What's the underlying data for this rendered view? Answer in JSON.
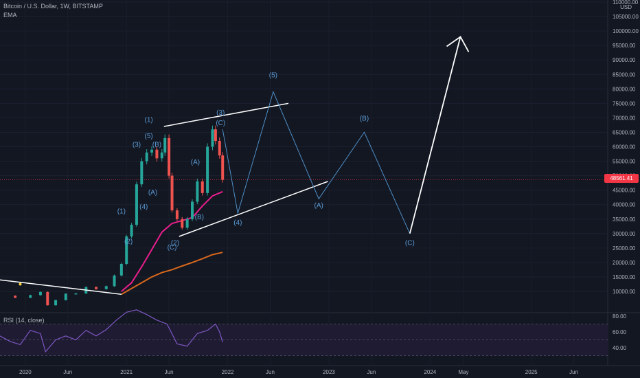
{
  "symbol": {
    "title": "Bitcoin / U.S. Dollar, 1W, BITSTAMP",
    "indicator": "EMA",
    "currency": "USD",
    "last_price": "48561.41"
  },
  "rsi": {
    "title": "RSI (14, close)",
    "axis_labels": [
      "80.00",
      "60.00",
      "40.00"
    ]
  },
  "x_axis_labels": [
    "2020",
    "Jun",
    "2021",
    "Jun",
    "2022",
    "Jun",
    "2023",
    "Jun",
    "2024",
    "May",
    "2025",
    "Jun"
  ],
  "chart_data": {
    "type": "candlestick",
    "title": "Bitcoin / U.S. Dollar, 1W, BITSTAMP",
    "y_axis_labels": [
      "110000.00",
      "105000.00",
      "100000.00",
      "95000.00",
      "90000.00",
      "85000.00",
      "80000.00",
      "75000.00",
      "70000.00",
      "65000.00",
      "60000.00",
      "55000.00",
      "50000.00",
      "45000.00",
      "40000.00",
      "35000.00",
      "30000.00",
      "25000.00",
      "20000.00",
      "15000.00",
      "10000.00"
    ],
    "y_range": [
      10000,
      110000
    ],
    "price_series": [
      [
        2019.75,
        8500
      ],
      [
        2019.9,
        7800
      ],
      [
        2020.05,
        8700
      ],
      [
        2020.15,
        9800
      ],
      [
        2020.22,
        5200
      ],
      [
        2020.3,
        7000
      ],
      [
        2020.4,
        9200
      ],
      [
        2020.5,
        9300
      ],
      [
        2020.6,
        11500
      ],
      [
        2020.7,
        10800
      ],
      [
        2020.8,
        11800
      ],
      [
        2020.88,
        15500
      ],
      [
        2020.95,
        19500
      ],
      [
        2021.0,
        29000
      ],
      [
        2021.05,
        33000
      ],
      [
        2021.1,
        47000
      ],
      [
        2021.15,
        55000
      ],
      [
        2021.2,
        58000
      ],
      [
        2021.25,
        59000
      ],
      [
        2021.3,
        56000
      ],
      [
        2021.35,
        58000
      ],
      [
        2021.38,
        63000
      ],
      [
        2021.42,
        50000
      ],
      [
        2021.45,
        38000
      ],
      [
        2021.5,
        35000
      ],
      [
        2021.55,
        32000
      ],
      [
        2021.6,
        35000
      ],
      [
        2021.65,
        41000
      ],
      [
        2021.7,
        48000
      ],
      [
        2021.75,
        44000
      ],
      [
        2021.8,
        60000
      ],
      [
        2021.85,
        66000
      ],
      [
        2021.88,
        62000
      ],
      [
        2021.92,
        57000
      ],
      [
        2021.95,
        48561
      ]
    ],
    "ema_short": [
      [
        2020.95,
        10000
      ],
      [
        2021.05,
        13000
      ],
      [
        2021.15,
        18500
      ],
      [
        2021.25,
        24500
      ],
      [
        2021.35,
        30500
      ],
      [
        2021.45,
        33500
      ],
      [
        2021.55,
        34500
      ],
      [
        2021.65,
        35500
      ],
      [
        2021.75,
        39500
      ],
      [
        2021.85,
        43000
      ],
      [
        2021.95,
        44500
      ]
    ],
    "ema_long": [
      [
        2020.95,
        9000
      ],
      [
        2021.05,
        11000
      ],
      [
        2021.15,
        13000
      ],
      [
        2021.25,
        15000
      ],
      [
        2021.35,
        16500
      ],
      [
        2021.45,
        17500
      ],
      [
        2021.55,
        18800
      ],
      [
        2021.65,
        20000
      ],
      [
        2021.75,
        21300
      ],
      [
        2021.85,
        22700
      ],
      [
        2021.95,
        23500
      ]
    ],
    "projection_path": [
      [
        2021.95,
        66000
      ],
      [
        2022.1,
        37000
      ],
      [
        2022.45,
        79000
      ],
      [
        2022.9,
        42000
      ],
      [
        2023.35,
        65000
      ],
      [
        2023.8,
        30000
      ]
    ],
    "upper_trendline": [
      [
        2021.37,
        67000
      ],
      [
        2022.6,
        75000
      ]
    ],
    "lower_trendline": [
      [
        2021.52,
        29000
      ],
      [
        2022.99,
        48000
      ]
    ],
    "breakout_arrow": [
      [
        2023.8,
        30000
      ],
      [
        2024.3,
        98000
      ]
    ],
    "old_downtrend_line": [
      [
        2019.75,
        14000
      ],
      [
        2020.95,
        9000
      ]
    ],
    "wave_labels": [
      {
        "text": "(1)",
        "x": 2020.95,
        "y": 37000
      },
      {
        "text": "(2)",
        "x": 2021.02,
        "y": 26500
      },
      {
        "text": "(3)",
        "x": 2021.1,
        "y": 60000
      },
      {
        "text": "(4)",
        "x": 2021.17,
        "y": 38500
      },
      {
        "text": "(5)",
        "x": 2021.22,
        "y": 63000
      },
      {
        "text": "(1)",
        "x": 2021.22,
        "y": 68500
      },
      {
        "text": "(A)",
        "x": 2021.26,
        "y": 43500
      },
      {
        "text": "(B)",
        "x": 2021.3,
        "y": 60000
      },
      {
        "text": "(C)",
        "x": 2021.45,
        "y": 24500
      },
      {
        "text": "(2)",
        "x": 2021.48,
        "y": 26000
      },
      {
        "text": "(A)",
        "x": 2021.68,
        "y": 54000
      },
      {
        "text": "(B)",
        "x": 2021.72,
        "y": 35000
      },
      {
        "text": "(3)",
        "x": 2021.93,
        "y": 71000
      },
      {
        "text": "(C)",
        "x": 2021.93,
        "y": 67500
      },
      {
        "text": "(4)",
        "x": 2022.1,
        "y": 33000
      },
      {
        "text": "(5)",
        "x": 2022.45,
        "y": 84000
      },
      {
        "text": "(A)",
        "x": 2022.9,
        "y": 39000
      },
      {
        "text": "(B)",
        "x": 2023.35,
        "y": 69000
      },
      {
        "text": "(C)",
        "x": 2023.8,
        "y": 26000
      }
    ],
    "rsi_series": [
      [
        2019.75,
        55
      ],
      [
        2019.85,
        48
      ],
      [
        2019.95,
        44
      ],
      [
        2020.05,
        62
      ],
      [
        2020.15,
        58
      ],
      [
        2020.2,
        35
      ],
      [
        2020.3,
        50
      ],
      [
        2020.4,
        55
      ],
      [
        2020.5,
        50
      ],
      [
        2020.6,
        62
      ],
      [
        2020.7,
        55
      ],
      [
        2020.8,
        63
      ],
      [
        2020.9,
        75
      ],
      [
        2021.0,
        85
      ],
      [
        2021.1,
        88
      ],
      [
        2021.2,
        82
      ],
      [
        2021.3,
        75
      ],
      [
        2021.4,
        70
      ],
      [
        2021.5,
        45
      ],
      [
        2021.6,
        42
      ],
      [
        2021.7,
        58
      ],
      [
        2021.8,
        62
      ],
      [
        2021.88,
        70
      ],
      [
        2021.92,
        60
      ],
      [
        2021.95,
        47
      ]
    ],
    "rsi_range": [
      30,
      80
    ],
    "rsi_bands": [
      70,
      50,
      30
    ]
  }
}
